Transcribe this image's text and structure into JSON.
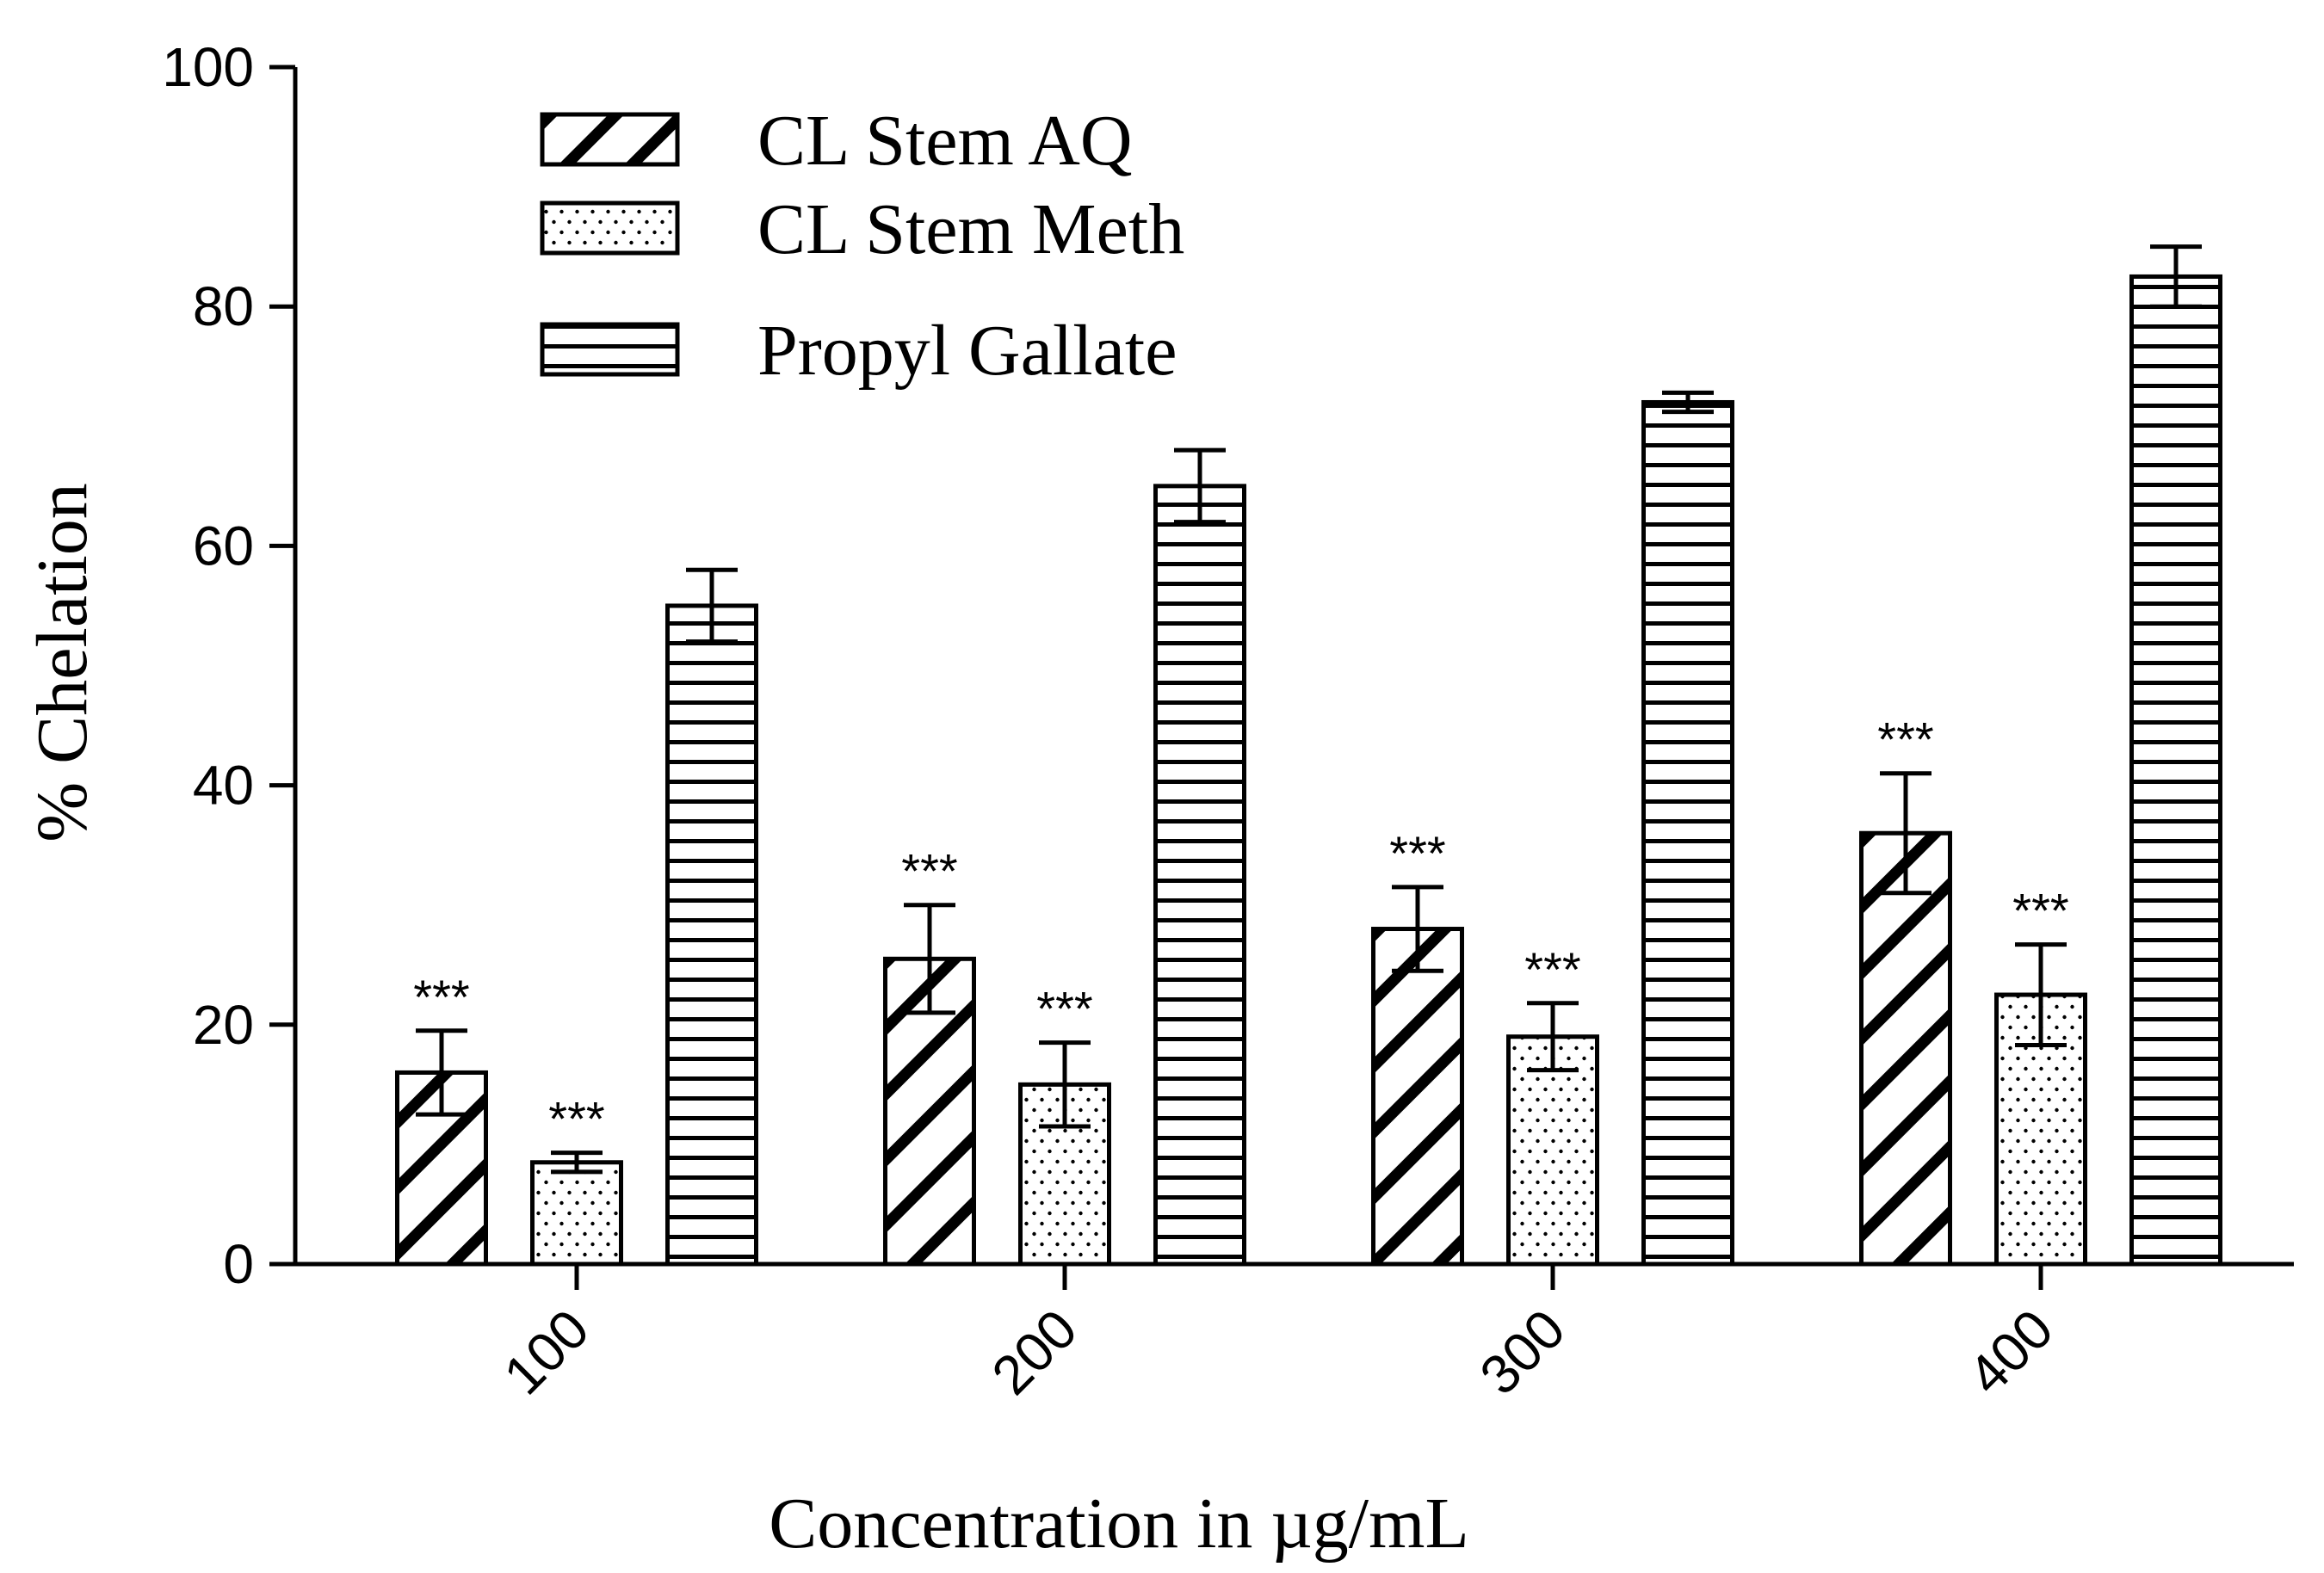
{
  "chart_data": {
    "type": "bar",
    "title": "",
    "xlabel": "Concentration in µg/mL",
    "ylabel": "% Chelation",
    "categories": [
      "100",
      "200",
      "300",
      "400"
    ],
    "ylim": [
      0,
      100
    ],
    "yticks": [
      "0",
      "20",
      "40",
      "60",
      "80",
      "100"
    ],
    "grid": false,
    "legend_position": "top-left",
    "series": [
      {
        "name": "CL Stem AQ",
        "pattern": "diagonal-hatch",
        "values": [
          16,
          25.5,
          28,
          36
        ],
        "errors": [
          3.5,
          4.5,
          3.5,
          5
        ],
        "significance": [
          "***",
          "***",
          "***",
          "***"
        ]
      },
      {
        "name": "CL Stem Meth",
        "pattern": "dotted",
        "values": [
          8.5,
          15,
          19,
          22.5
        ],
        "errors": [
          0.8,
          3.5,
          2.8,
          4.2
        ],
        "significance": [
          "***",
          "***",
          "***",
          "***"
        ]
      },
      {
        "name": "Propyl Gallate",
        "pattern": "horizontal-lines",
        "values": [
          55,
          65,
          72,
          82.5
        ],
        "errors": [
          3,
          3,
          0.8,
          2.5
        ],
        "significance": [
          "",
          "",
          "",
          ""
        ]
      }
    ]
  }
}
